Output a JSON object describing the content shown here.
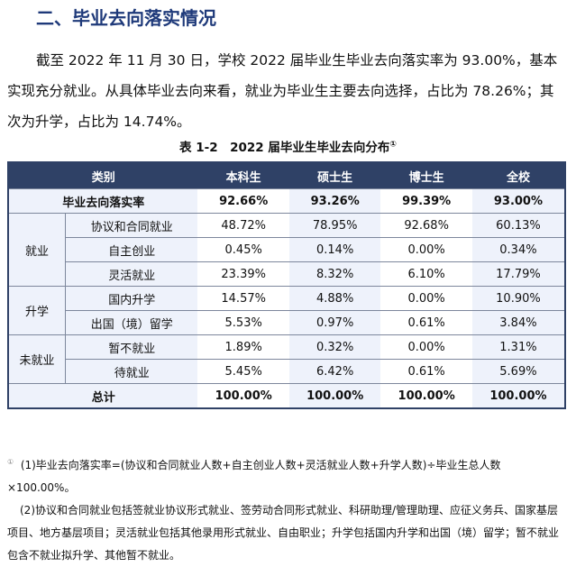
{
  "heading": "二、毕业去向落实情况",
  "paragraph": "截至 2022 年 11 月 30 日，学校 2022 届毕业生毕业去向落实率为 93.00%，基本实现充分就业。从具体毕业去向来看，就业为毕业生主要去向选择，占比为 78.26%；其次为升学，占比为 14.74%。",
  "caption": "表 1-2　2022 届毕业生毕业去向分布",
  "caption_sup": "①",
  "table": {
    "headers": [
      "类别",
      "本科生",
      "硕士生",
      "博士生",
      "全校"
    ],
    "rate": {
      "label": "毕业去向落实率",
      "values": [
        "92.66%",
        "93.26%",
        "99.39%",
        "93.00%"
      ]
    },
    "groups": [
      {
        "name": "就业",
        "rows": [
          {
            "label": "协议和合同就业",
            "values": [
              "48.72%",
              "78.95%",
              "92.68%",
              "60.13%"
            ]
          },
          {
            "label": "自主创业",
            "values": [
              "0.45%",
              "0.14%",
              "0.00%",
              "0.34%"
            ]
          },
          {
            "label": "灵活就业",
            "values": [
              "23.39%",
              "8.32%",
              "6.10%",
              "17.79%"
            ]
          }
        ]
      },
      {
        "name": "升学",
        "rows": [
          {
            "label": "国内升学",
            "values": [
              "14.57%",
              "4.88%",
              "0.00%",
              "10.90%"
            ]
          },
          {
            "label": "出国（境）留学",
            "values": [
              "5.53%",
              "0.97%",
              "0.61%",
              "3.84%"
            ]
          }
        ]
      },
      {
        "name": "未就业",
        "rows": [
          {
            "label": "暂不就业",
            "values": [
              "1.89%",
              "0.32%",
              "0.00%",
              "1.31%"
            ]
          },
          {
            "label": "待就业",
            "values": [
              "5.45%",
              "6.42%",
              "0.61%",
              "5.69%"
            ]
          }
        ]
      }
    ],
    "total": {
      "label": "总计",
      "values": [
        "100.00%",
        "100.00%",
        "100.00%",
        "100.00%"
      ]
    }
  },
  "notes": {
    "marker": "①",
    "n1": "(1)毕业去向落实率=(协议和合同就业人数+自主创业人数+灵活就业人数+升学人数)÷毕业生总人数×100.00%。",
    "n2": "(2)协议和合同就业包括签就业协议形式就业、签劳动合同形式就业、科研助理/管理助理、应征义务兵、国家基层项目、地方基层项目；灵活就业包括其他录用形式就业、自由职业；升学包括国内升学和出国（境）留学；暂不就业包含不就业拟升学、其他暂不就业。"
  }
}
